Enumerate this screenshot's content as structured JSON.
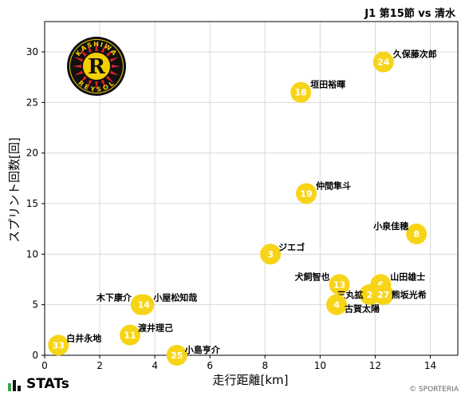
{
  "header": {
    "match_title": "J1 第15節 vs 清水"
  },
  "footer": {
    "brand": "STATs",
    "copyright": "© SPORTERIA"
  },
  "logo": {
    "top_text": "KASHIWA",
    "bottom_text": "REYSOL",
    "letter": "R",
    "colors": {
      "yellow": "#f5d000",
      "black": "#111111",
      "red": "#d8232a"
    }
  },
  "colors": {
    "bubble": "#f7d418",
    "bubble_text": "#ffffff",
    "grid": "#d9d9d9"
  },
  "chart_data": {
    "type": "scatter",
    "xlabel": "走行距離[km]",
    "ylabel": "スプリント回数[回]",
    "xlim": [
      0,
      15
    ],
    "ylim": [
      0,
      33
    ],
    "xticks": [
      0,
      2,
      4,
      6,
      8,
      10,
      12,
      14
    ],
    "yticks": [
      0,
      5,
      10,
      15,
      20,
      25,
      30
    ],
    "grid": true,
    "points": [
      {
        "number": "24",
        "name": "久保藤次郎",
        "x": 12.3,
        "y": 29
      },
      {
        "number": "18",
        "name": "垣田裕暉",
        "x": 9.3,
        "y": 26
      },
      {
        "number": "19",
        "name": "仲間隼斗",
        "x": 9.5,
        "y": 16
      },
      {
        "number": "8",
        "name": "小泉佳穂",
        "x": 13.5,
        "y": 12
      },
      {
        "number": "3",
        "name": "ジエゴ",
        "x": 8.2,
        "y": 10
      },
      {
        "number": "13",
        "name": "犬飼智也",
        "x": 10.7,
        "y": 7
      },
      {
        "number": "6",
        "name": "山田雄士",
        "x": 12.2,
        "y": 7
      },
      {
        "number": "2",
        "name": "三丸拡",
        "x": 11.8,
        "y": 6
      },
      {
        "number": "27",
        "name": "熊坂光希",
        "x": 12.3,
        "y": 6
      },
      {
        "number": "4",
        "name": "古賀太陽",
        "x": 10.6,
        "y": 5
      },
      {
        "number": "15",
        "name": "木下康介",
        "x": 3.5,
        "y": 5
      },
      {
        "number": "14",
        "name": "小屋松知哉",
        "x": 3.6,
        "y": 5
      },
      {
        "number": "11",
        "name": "渡井理己",
        "x": 3.1,
        "y": 2
      },
      {
        "number": "33",
        "name": "白井永地",
        "x": 0.5,
        "y": 1
      },
      {
        "number": "25",
        "name": "小島亨介",
        "x": 4.8,
        "y": 0
      }
    ]
  }
}
